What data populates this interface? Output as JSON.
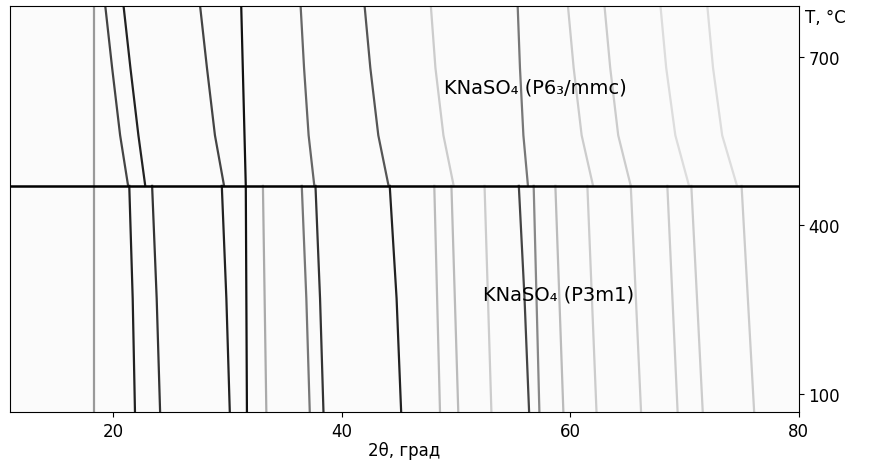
{
  "chart_data": {
    "type": "line",
    "xlabel": "2θ, град",
    "ylabel": "T, °C",
    "xlim": [
      11,
      80
    ],
    "xticks": [
      20,
      40,
      60,
      80
    ],
    "ylim": [
      68,
      790
    ],
    "yticks": [
      100,
      400,
      700
    ],
    "grid": false,
    "hlines": [
      470
    ],
    "annotations": [
      "KNaSO₄ (P6₃/mmc)",
      "KNaSO₄ (P3m1)"
    ],
    "series": [
      {
        "color": "#999999",
        "x": [
          18.3,
          18.3
        ],
        "values": [
          68,
          790
        ]
      },
      {
        "color": "#222222",
        "x": [
          21.9,
          21.7,
          21.4
        ],
        "values": [
          68,
          270,
          470
        ]
      },
      {
        "color": "#333333",
        "x": [
          24.1,
          23.8,
          23.4
        ],
        "values": [
          68,
          270,
          470
        ]
      },
      {
        "color": "#222222",
        "x": [
          30.2,
          29.9,
          29.5
        ],
        "values": [
          68,
          270,
          470
        ]
      },
      {
        "color": "#111111",
        "x": [
          31.7,
          31.6,
          31.4,
          31.2
        ],
        "values": [
          68,
          470,
          630,
          790
        ]
      },
      {
        "color": "#aaaaaa",
        "x": [
          33.4,
          33.1
        ],
        "values": [
          68,
          470
        ]
      },
      {
        "color": "#777777",
        "x": [
          37.2,
          36.9,
          36.5
        ],
        "values": [
          68,
          270,
          470
        ]
      },
      {
        "color": "#333333",
        "x": [
          38.4,
          38.1,
          37.7
        ],
        "values": [
          68,
          270,
          470
        ]
      },
      {
        "color": "#222222",
        "x": [
          45.2,
          44.8,
          44.2
        ],
        "values": [
          68,
          270,
          470
        ]
      },
      {
        "color": "#bbbbbb",
        "x": [
          48.6,
          48.1
        ],
        "values": [
          68,
          470
        ]
      },
      {
        "color": "#bbbbbb",
        "x": [
          50.2,
          49.6
        ],
        "values": [
          68,
          470
        ]
      },
      {
        "color": "#cccccc",
        "x": [
          53.1,
          52.5
        ],
        "values": [
          68,
          470
        ]
      },
      {
        "color": "#444444",
        "x": [
          56.4,
          56.0,
          55.5
        ],
        "values": [
          68,
          270,
          470
        ]
      },
      {
        "color": "#888888",
        "x": [
          57.3,
          56.8
        ],
        "values": [
          68,
          470
        ]
      },
      {
        "color": "#bbbbbb",
        "x": [
          59.4,
          58.7
        ],
        "values": [
          68,
          470
        ]
      },
      {
        "color": "#cccccc",
        "x": [
          62.3,
          61.5
        ],
        "values": [
          68,
          470
        ]
      },
      {
        "color": "#cccccc",
        "x": [
          66.2,
          65.3
        ],
        "values": [
          68,
          470
        ]
      },
      {
        "color": "#cccccc",
        "x": [
          69.4,
          68.5
        ],
        "values": [
          68,
          470
        ]
      },
      {
        "color": "#cccccc",
        "x": [
          71.6,
          70.6
        ],
        "values": [
          68,
          470
        ]
      },
      {
        "color": "#cccccc",
        "x": [
          76.1,
          75.0
        ],
        "values": [
          68,
          470
        ]
      },
      {
        "color": "#444444",
        "x": [
          21.3,
          20.6,
          19.9,
          19.3
        ],
        "values": [
          470,
          560,
          680,
          790
        ]
      },
      {
        "color": "#222222",
        "x": [
          22.8,
          22.2,
          21.5,
          20.9
        ],
        "values": [
          470,
          560,
          680,
          790
        ]
      },
      {
        "color": "#444444",
        "x": [
          29.7,
          28.9,
          28.2,
          27.6
        ],
        "values": [
          470,
          560,
          680,
          790
        ]
      },
      {
        "color": "#666666",
        "x": [
          37.6,
          37.1,
          36.7,
          36.4
        ],
        "values": [
          470,
          560,
          680,
          790
        ]
      },
      {
        "color": "#555555",
        "x": [
          44.1,
          43.2,
          42.5,
          42.0
        ],
        "values": [
          470,
          560,
          680,
          790
        ]
      },
      {
        "color": "#777777",
        "x": [
          56.3,
          55.9,
          55.6,
          55.4
        ],
        "values": [
          470,
          560,
          680,
          790
        ]
      },
      {
        "color": "#cccccc",
        "x": [
          49.8,
          48.9,
          48.2,
          47.8
        ],
        "values": [
          470,
          560,
          680,
          790
        ]
      },
      {
        "color": "#cccccc",
        "x": [
          62.0,
          61.0,
          60.3,
          59.8
        ],
        "values": [
          470,
          560,
          680,
          790
        ]
      },
      {
        "color": "#cccccc",
        "x": [
          65.3,
          64.2,
          63.5,
          63.0
        ],
        "values": [
          470,
          560,
          680,
          790
        ]
      },
      {
        "color": "#dddddd",
        "x": [
          70.4,
          69.2,
          68.4,
          67.9
        ],
        "values": [
          470,
          560,
          680,
          790
        ]
      },
      {
        "color": "#dddddd",
        "x": [
          74.6,
          73.3,
          72.5,
          72.0
        ],
        "values": [
          470,
          560,
          680,
          790
        ]
      }
    ]
  }
}
